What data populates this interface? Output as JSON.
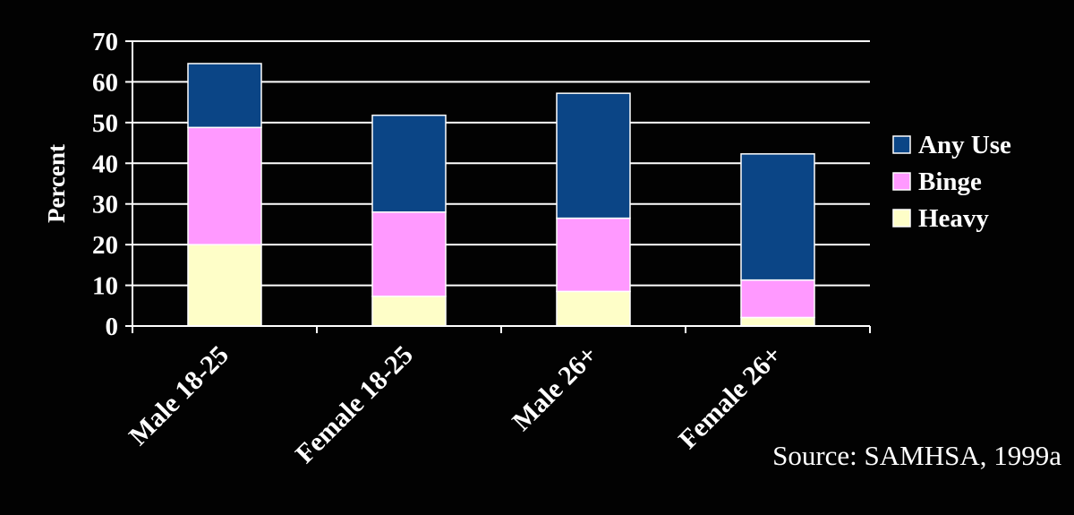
{
  "colors": {
    "background": "#020202",
    "axis": "#ffffff",
    "heavy": "#fefec8",
    "binge": "#ff99ff",
    "any_use": "#0b4586"
  },
  "chart_data": {
    "type": "bar",
    "stacked": true,
    "categories": [
      "Male 18-25",
      "Female 18-25",
      "Male 26+",
      "Female 26+"
    ],
    "series": [
      {
        "name": "Heavy",
        "values": [
          20,
          7.3,
          8.5,
          2.1
        ]
      },
      {
        "name": "Binge",
        "values": [
          28.8,
          20.7,
          18,
          9.2
        ]
      },
      {
        "name": "Any Use",
        "values": [
          15.7,
          23.8,
          30.7,
          31
        ]
      }
    ],
    "legend_order": [
      "Any Use",
      "Binge",
      "Heavy"
    ],
    "title": "",
    "xlabel": "",
    "ylabel": "Percent",
    "ylim": [
      0,
      70
    ],
    "yticks": [
      0,
      10,
      20,
      30,
      40,
      50,
      60,
      70
    ],
    "grid": true,
    "legend_position": "right"
  },
  "source": "Source: SAMHSA, 1999a"
}
